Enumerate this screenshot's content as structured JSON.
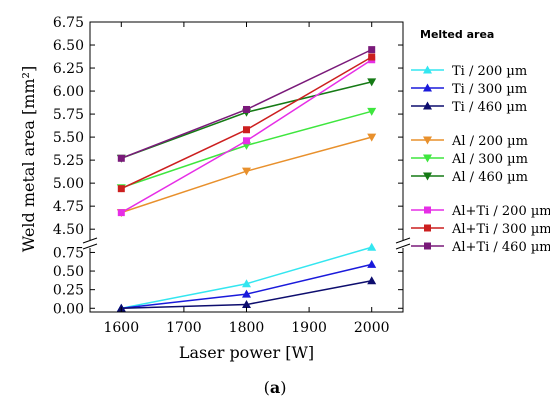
{
  "chart_data": {
    "type": "line",
    "xlabel": "Laser power  [W]",
    "ylabel": "Weld metal area  [mm²]",
    "x_ticks": [
      "1600",
      "1700",
      "1800",
      "1900",
      "2000"
    ],
    "xlim": [
      1550,
      2050
    ],
    "upper_ylim": [
      4.35,
      6.75
    ],
    "upper_y_ticks": [
      "4.50",
      "4.75",
      "5.00",
      "5.25",
      "5.50",
      "5.75",
      "6.00",
      "6.25",
      "6.50",
      "6.75"
    ],
    "lower_ylim": [
      -0.05,
      0.85
    ],
    "lower_y_ticks": [
      "0.00",
      "0.25",
      "0.50",
      "0.75"
    ],
    "axis_break": true,
    "legend_title": "Melted area",
    "legend_position": "right",
    "series": [
      {
        "name": "Ti / 200 µm",
        "color": "#33e6f0",
        "marker": "triangle-up",
        "x": [
          1600,
          1800,
          2000
        ],
        "y": [
          0.0,
          0.33,
          0.82
        ],
        "panel": "lower"
      },
      {
        "name": "Ti / 300 µm",
        "color": "#1a1adb",
        "marker": "triangle-up",
        "x": [
          1600,
          1800,
          2000
        ],
        "y": [
          0.0,
          0.19,
          0.59
        ],
        "panel": "lower"
      },
      {
        "name": "Ti / 460 µm",
        "color": "#0d0d6e",
        "marker": "triangle-up",
        "x": [
          1600,
          1800,
          2000
        ],
        "y": [
          0.0,
          0.05,
          0.37
        ],
        "panel": "lower"
      },
      {
        "name": "Al / 200 µm",
        "color": "#e8902c",
        "marker": "triangle-down",
        "x": [
          1600,
          1800,
          2000
        ],
        "y": [
          4.68,
          5.13,
          5.5
        ],
        "panel": "upper"
      },
      {
        "name": "Al / 300 µm",
        "color": "#3ee63e",
        "marker": "triangle-down",
        "x": [
          1600,
          1800,
          2000
        ],
        "y": [
          4.95,
          5.41,
          5.78
        ],
        "panel": "upper"
      },
      {
        "name": "Al / 460 µm",
        "color": "#157a15",
        "marker": "triangle-down",
        "x": [
          1600,
          1800,
          2000
        ],
        "y": [
          5.27,
          5.77,
          6.1
        ],
        "panel": "upper"
      },
      {
        "name": "Al+Ti / 200 µm",
        "color": "#e62ee6",
        "marker": "square",
        "x": [
          1600,
          1800,
          2000
        ],
        "y": [
          4.68,
          5.46,
          6.34
        ],
        "panel": "upper"
      },
      {
        "name": "Al+Ti / 300 µm",
        "color": "#cc1f1f",
        "marker": "square",
        "x": [
          1600,
          1800,
          2000
        ],
        "y": [
          4.94,
          5.58,
          6.37
        ],
        "panel": "upper"
      },
      {
        "name": "Al+Ti / 460 µm",
        "color": "#7a1a7a",
        "marker": "square",
        "x": [
          1600,
          1800,
          2000
        ],
        "y": [
          5.27,
          5.8,
          6.45
        ],
        "panel": "upper"
      }
    ]
  },
  "caption": {
    "open": "(",
    "letter": "a",
    "close": ")"
  }
}
